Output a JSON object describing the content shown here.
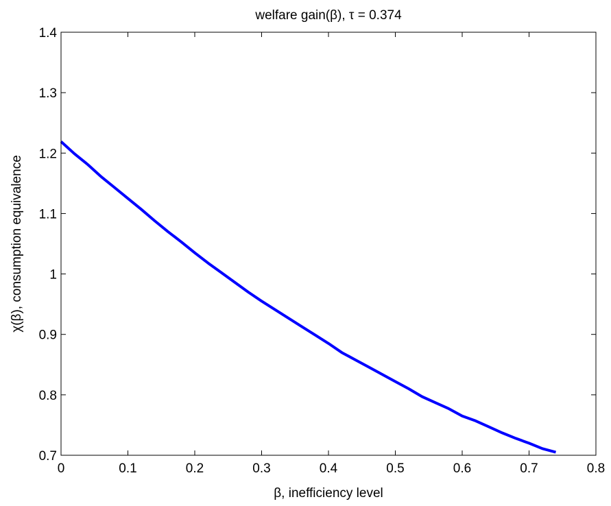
{
  "chart_data": {
    "type": "line",
    "title": "welfare gain(β), τ = 0.374",
    "xlabel": "β, inefficiency level",
    "ylabel": "χ(β), consumption equivalence",
    "xlim": [
      0,
      0.8
    ],
    "ylim": [
      0.7,
      1.4
    ],
    "xticks": [
      0,
      0.1,
      0.2,
      0.3,
      0.4,
      0.5,
      0.6,
      0.7,
      0.8
    ],
    "xtick_labels": [
      "0",
      "0.1",
      "0.2",
      "0.3",
      "0.4",
      "0.5",
      "0.6",
      "0.7",
      "0.8"
    ],
    "yticks": [
      0.7,
      0.8,
      0.9,
      1.0,
      1.1,
      1.2,
      1.3,
      1.4
    ],
    "ytick_labels": [
      "0.7",
      "0.8",
      "0.9",
      "1",
      "1.1",
      "1.2",
      "1.3",
      "1.4"
    ],
    "grid": false,
    "legend": "none",
    "series": [
      {
        "color": "#0000ff",
        "x": [
          0,
          0.02,
          0.04,
          0.06,
          0.08,
          0.1,
          0.12,
          0.14,
          0.16,
          0.18,
          0.2,
          0.22,
          0.24,
          0.26,
          0.28,
          0.3,
          0.32,
          0.34,
          0.36,
          0.38,
          0.4,
          0.42,
          0.44,
          0.46,
          0.48,
          0.5,
          0.52,
          0.54,
          0.56,
          0.58,
          0.6,
          0.62,
          0.64,
          0.66,
          0.68,
          0.7,
          0.72,
          0.74
        ],
        "y": [
          1.219,
          1.199,
          1.181,
          1.161,
          1.143,
          1.125,
          1.107,
          1.088,
          1.07,
          1.053,
          1.035,
          1.018,
          1.002,
          0.986,
          0.97,
          0.955,
          0.941,
          0.927,
          0.913,
          0.899,
          0.885,
          0.87,
          0.858,
          0.846,
          0.834,
          0.822,
          0.81,
          0.797,
          0.787,
          0.777,
          0.765,
          0.757,
          0.747,
          0.737,
          0.728,
          0.72,
          0.711,
          0.705
        ]
      }
    ]
  }
}
